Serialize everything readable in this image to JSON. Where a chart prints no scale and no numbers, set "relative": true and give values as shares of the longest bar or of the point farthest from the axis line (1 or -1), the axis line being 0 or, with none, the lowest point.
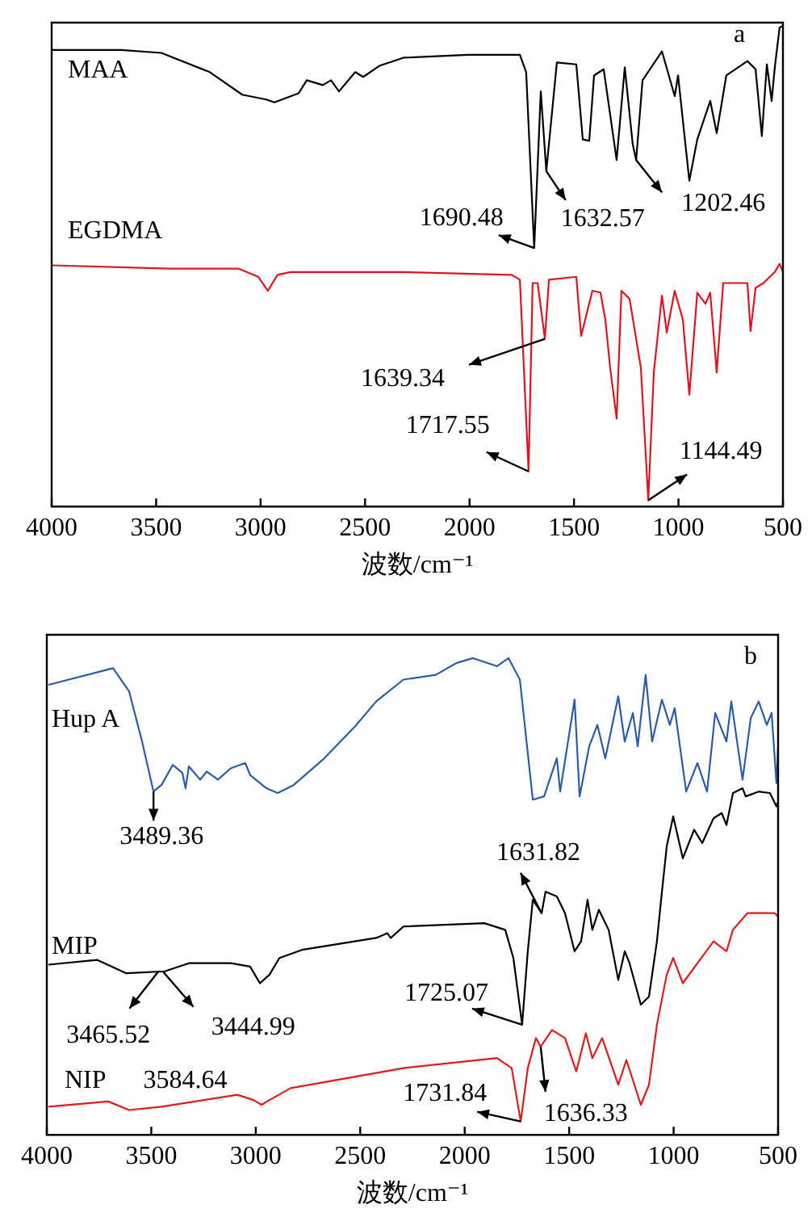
{
  "chart_data": [
    {
      "type": "line",
      "relative": true,
      "xlabel": "波数/cm⁻¹",
      "xlim": [
        4000,
        500
      ],
      "xticks": [
        4000,
        3500,
        3000,
        2500,
        2000,
        1500,
        1000,
        500
      ],
      "series": [
        {
          "name": "MAA",
          "color": "#000000",
          "x": [
            4000,
            3668,
            3475,
            3243,
            3088,
            2972,
            2934,
            2818,
            2779,
            2702,
            2663,
            2625,
            2547,
            2509,
            2432,
            2316,
            2007,
            1759,
            1729,
            1690.48,
            1659,
            1632.57,
            1582,
            1489,
            1458,
            1427,
            1404,
            1358,
            1296,
            1257,
            1219,
            1202.46,
            1172,
            1079,
            1018,
            1002,
            948,
            910,
            848,
            817,
            771,
            670,
            631,
            601,
            577,
            554,
            539,
            516,
            500
          ],
          "values": [
            0.95,
            0.95,
            0.944,
            0.904,
            0.857,
            0.847,
            0.841,
            0.86,
            0.887,
            0.877,
            0.887,
            0.864,
            0.904,
            0.894,
            0.917,
            0.934,
            0.94,
            0.94,
            0.904,
            0.538,
            0.864,
            0.698,
            0.924,
            0.92,
            0.764,
            0.761,
            0.897,
            0.91,
            0.721,
            0.914,
            0.754,
            0.721,
            0.887,
            0.947,
            0.854,
            0.897,
            0.678,
            0.764,
            0.844,
            0.777,
            0.897,
            0.927,
            0.91,
            0.771,
            0.92,
            0.844,
            0.914,
            0.997,
            1
          ]
        },
        {
          "name": "EGDMA",
          "color": "#e3141e",
          "x": [
            4000,
            3436,
            3104,
            3011,
            2965,
            2919,
            2857,
            2316,
            1798,
            1759,
            1717.55,
            1698,
            1674,
            1639.34,
            1620,
            1489,
            1466,
            1443,
            1412,
            1373,
            1350,
            1327,
            1296,
            1273,
            1234,
            1180,
            1144.49,
            1118,
            1079,
            1056,
            1018,
            979,
            948,
            910,
            871,
            848,
            817,
            786,
            670,
            655,
            631,
            593,
            539,
            516,
            500
          ],
          "values": [
            0.502,
            0.495,
            0.495,
            0.478,
            0.449,
            0.482,
            0.488,
            0.488,
            0.482,
            0.472,
            0.073,
            0.465,
            0.465,
            0.349,
            0.472,
            0.478,
            0.355,
            0.395,
            0.449,
            0.445,
            0.389,
            0.289,
            0.183,
            0.449,
            0.432,
            0.289,
            0.013,
            0.279,
            0.439,
            0.362,
            0.449,
            0.389,
            0.233,
            0.445,
            0.422,
            0.445,
            0.279,
            0.465,
            0.465,
            0.365,
            0.455,
            0.465,
            0.488,
            0.505,
            0.488
          ]
        }
      ],
      "annotations": [
        {
          "text": "1690.48",
          "x": 1690.48,
          "y": 0.538
        },
        {
          "text": "1632.57",
          "x": 1632.57,
          "y": 0.698
        },
        {
          "text": "1202.46",
          "x": 1202.46,
          "y": 0.721
        },
        {
          "text": "1639.34",
          "x": 1639.34,
          "y": 0.349
        },
        {
          "text": "1717.55",
          "x": 1717.55,
          "y": 0.073
        },
        {
          "text": "1144.49",
          "x": 1144.49,
          "y": 0.013
        },
        "a"
      ]
    },
    {
      "type": "line",
      "relative": true,
      "xlabel": "波数/cm⁻¹",
      "xlim": [
        4000,
        500
      ],
      "xticks": [
        4000,
        3500,
        3000,
        2500,
        2000,
        1500,
        1000,
        500
      ],
      "series": [
        {
          "name": "Hup A",
          "color": "#2a5caa",
          "x": [
            3992,
            3683,
            3606,
            3544,
            3489.36,
            3451,
            3397,
            3351,
            3336,
            3320,
            3266,
            3235,
            3181,
            3119,
            3050,
            3027,
            2949,
            2895,
            2818,
            2679,
            2524,
            2424,
            2293,
            2138,
            2038,
            1960,
            1845,
            1790,
            1736,
            1674,
            1620,
            1559,
            1543,
            1474,
            1450,
            1404,
            1365,
            1327,
            1265,
            1234,
            1195,
            1172,
            1134,
            1103,
            1056,
            1018,
            995,
            940,
            886,
            840,
            801,
            747,
            724,
            670,
            631,
            593,
            554,
            531,
            508,
            500
          ],
          "values": [
            0.944,
            0.979,
            0.93,
            0.825,
            0.72,
            0.734,
            0.776,
            0.759,
            0.727,
            0.773,
            0.745,
            0.762,
            0.745,
            0.769,
            0.78,
            0.755,
            0.727,
            0.717,
            0.734,
            0.787,
            0.857,
            0.909,
            0.955,
            0.965,
            0.99,
            1,
            0.983,
            1,
            0.955,
            0.703,
            0.71,
            0.79,
            0.72,
            0.913,
            0.71,
            0.815,
            0.86,
            0.79,
            0.92,
            0.825,
            0.885,
            0.815,
            0.965,
            0.825,
            0.913,
            0.86,
            0.895,
            0.72,
            0.78,
            0.72,
            0.885,
            0.825,
            0.909,
            0.745,
            0.874,
            0.909,
            0.86,
            0.885,
            0.738,
            0.815
          ]
        },
        {
          "name": "MIP",
          "color": "#000000",
          "x": [
            3992,
            3760,
            3621,
            3436,
            3320,
            3119,
            3027,
            2980,
            2934,
            2887,
            2779,
            2424,
            2370,
            2354,
            2293,
            1906,
            1806,
            1767,
            1725.07,
            1698,
            1674,
            1631.82,
            1613,
            1559,
            1520,
            1474,
            1443,
            1412,
            1389,
            1358,
            1311,
            1265,
            1234,
            1211,
            1157,
            1118,
            1080,
            1056,
            1033,
            1002,
            956,
            902,
            863,
            809,
            770,
            747,
            716,
            670,
            655,
            593,
            539,
            508,
            500
          ],
          "values": [
            0.357,
            0.367,
            0.339,
            0.343,
            0.36,
            0.36,
            0.353,
            0.318,
            0.336,
            0.371,
            0.388,
            0.413,
            0.423,
            0.413,
            0.437,
            0.444,
            0.43,
            0.371,
            0.231,
            0.385,
            0.493,
            0.465,
            0.51,
            0.5,
            0.465,
            0.385,
            0.406,
            0.493,
            0.43,
            0.472,
            0.43,
            0.325,
            0.385,
            0.36,
            0.273,
            0.29,
            0.406,
            0.51,
            0.605,
            0.668,
            0.58,
            0.64,
            0.612,
            0.664,
            0.675,
            0.65,
            0.717,
            0.727,
            0.71,
            0.72,
            0.717,
            0.689,
            0.699
          ]
        },
        {
          "name": "NIP",
          "color": "#e31a1c",
          "x": [
            3992,
            3706,
            3606,
            3451,
            3088,
            3011,
            2972,
            2934,
            2833,
            2293,
            1845,
            1775,
            1731.84,
            1698,
            1659,
            1636.33,
            1582,
            1520,
            1466,
            1420,
            1389,
            1342,
            1265,
            1226,
            1157,
            1118,
            1080,
            1033,
            1002,
            956,
            886,
            809,
            747,
            716,
            647,
            516,
            500
          ],
          "values": [
            0.059,
            0.07,
            0.052,
            0.059,
            0.084,
            0.073,
            0.063,
            0.073,
            0.098,
            0.14,
            0.161,
            0.14,
            0.028,
            0.14,
            0.203,
            0.185,
            0.22,
            0.203,
            0.133,
            0.213,
            0.161,
            0.203,
            0.105,
            0.157,
            0.063,
            0.105,
            0.231,
            0.336,
            0.371,
            0.318,
            0.36,
            0.406,
            0.385,
            0.43,
            0.465,
            0.465,
            0.458
          ]
        }
      ],
      "annotations": [
        {
          "text": "3489.36",
          "x": 3489.36,
          "y": 0.72
        },
        {
          "text": "3465.52",
          "x": 3465.52,
          "y": 0.343
        },
        {
          "text": "3444.99",
          "x": 3444.99,
          "y": 0.343
        },
        {
          "text": "3584.64",
          "x": 3584.64,
          "y": 0.052
        },
        {
          "text": "1631.82",
          "x": 1631.82,
          "y": 0.465
        },
        {
          "text": "1725.07",
          "x": 1725.07,
          "y": 0.231
        },
        {
          "text": "1731.84",
          "x": 1731.84,
          "y": 0.028
        },
        {
          "text": "1636.33",
          "x": 1636.33,
          "y": 0.185
        },
        "b"
      ]
    }
  ]
}
